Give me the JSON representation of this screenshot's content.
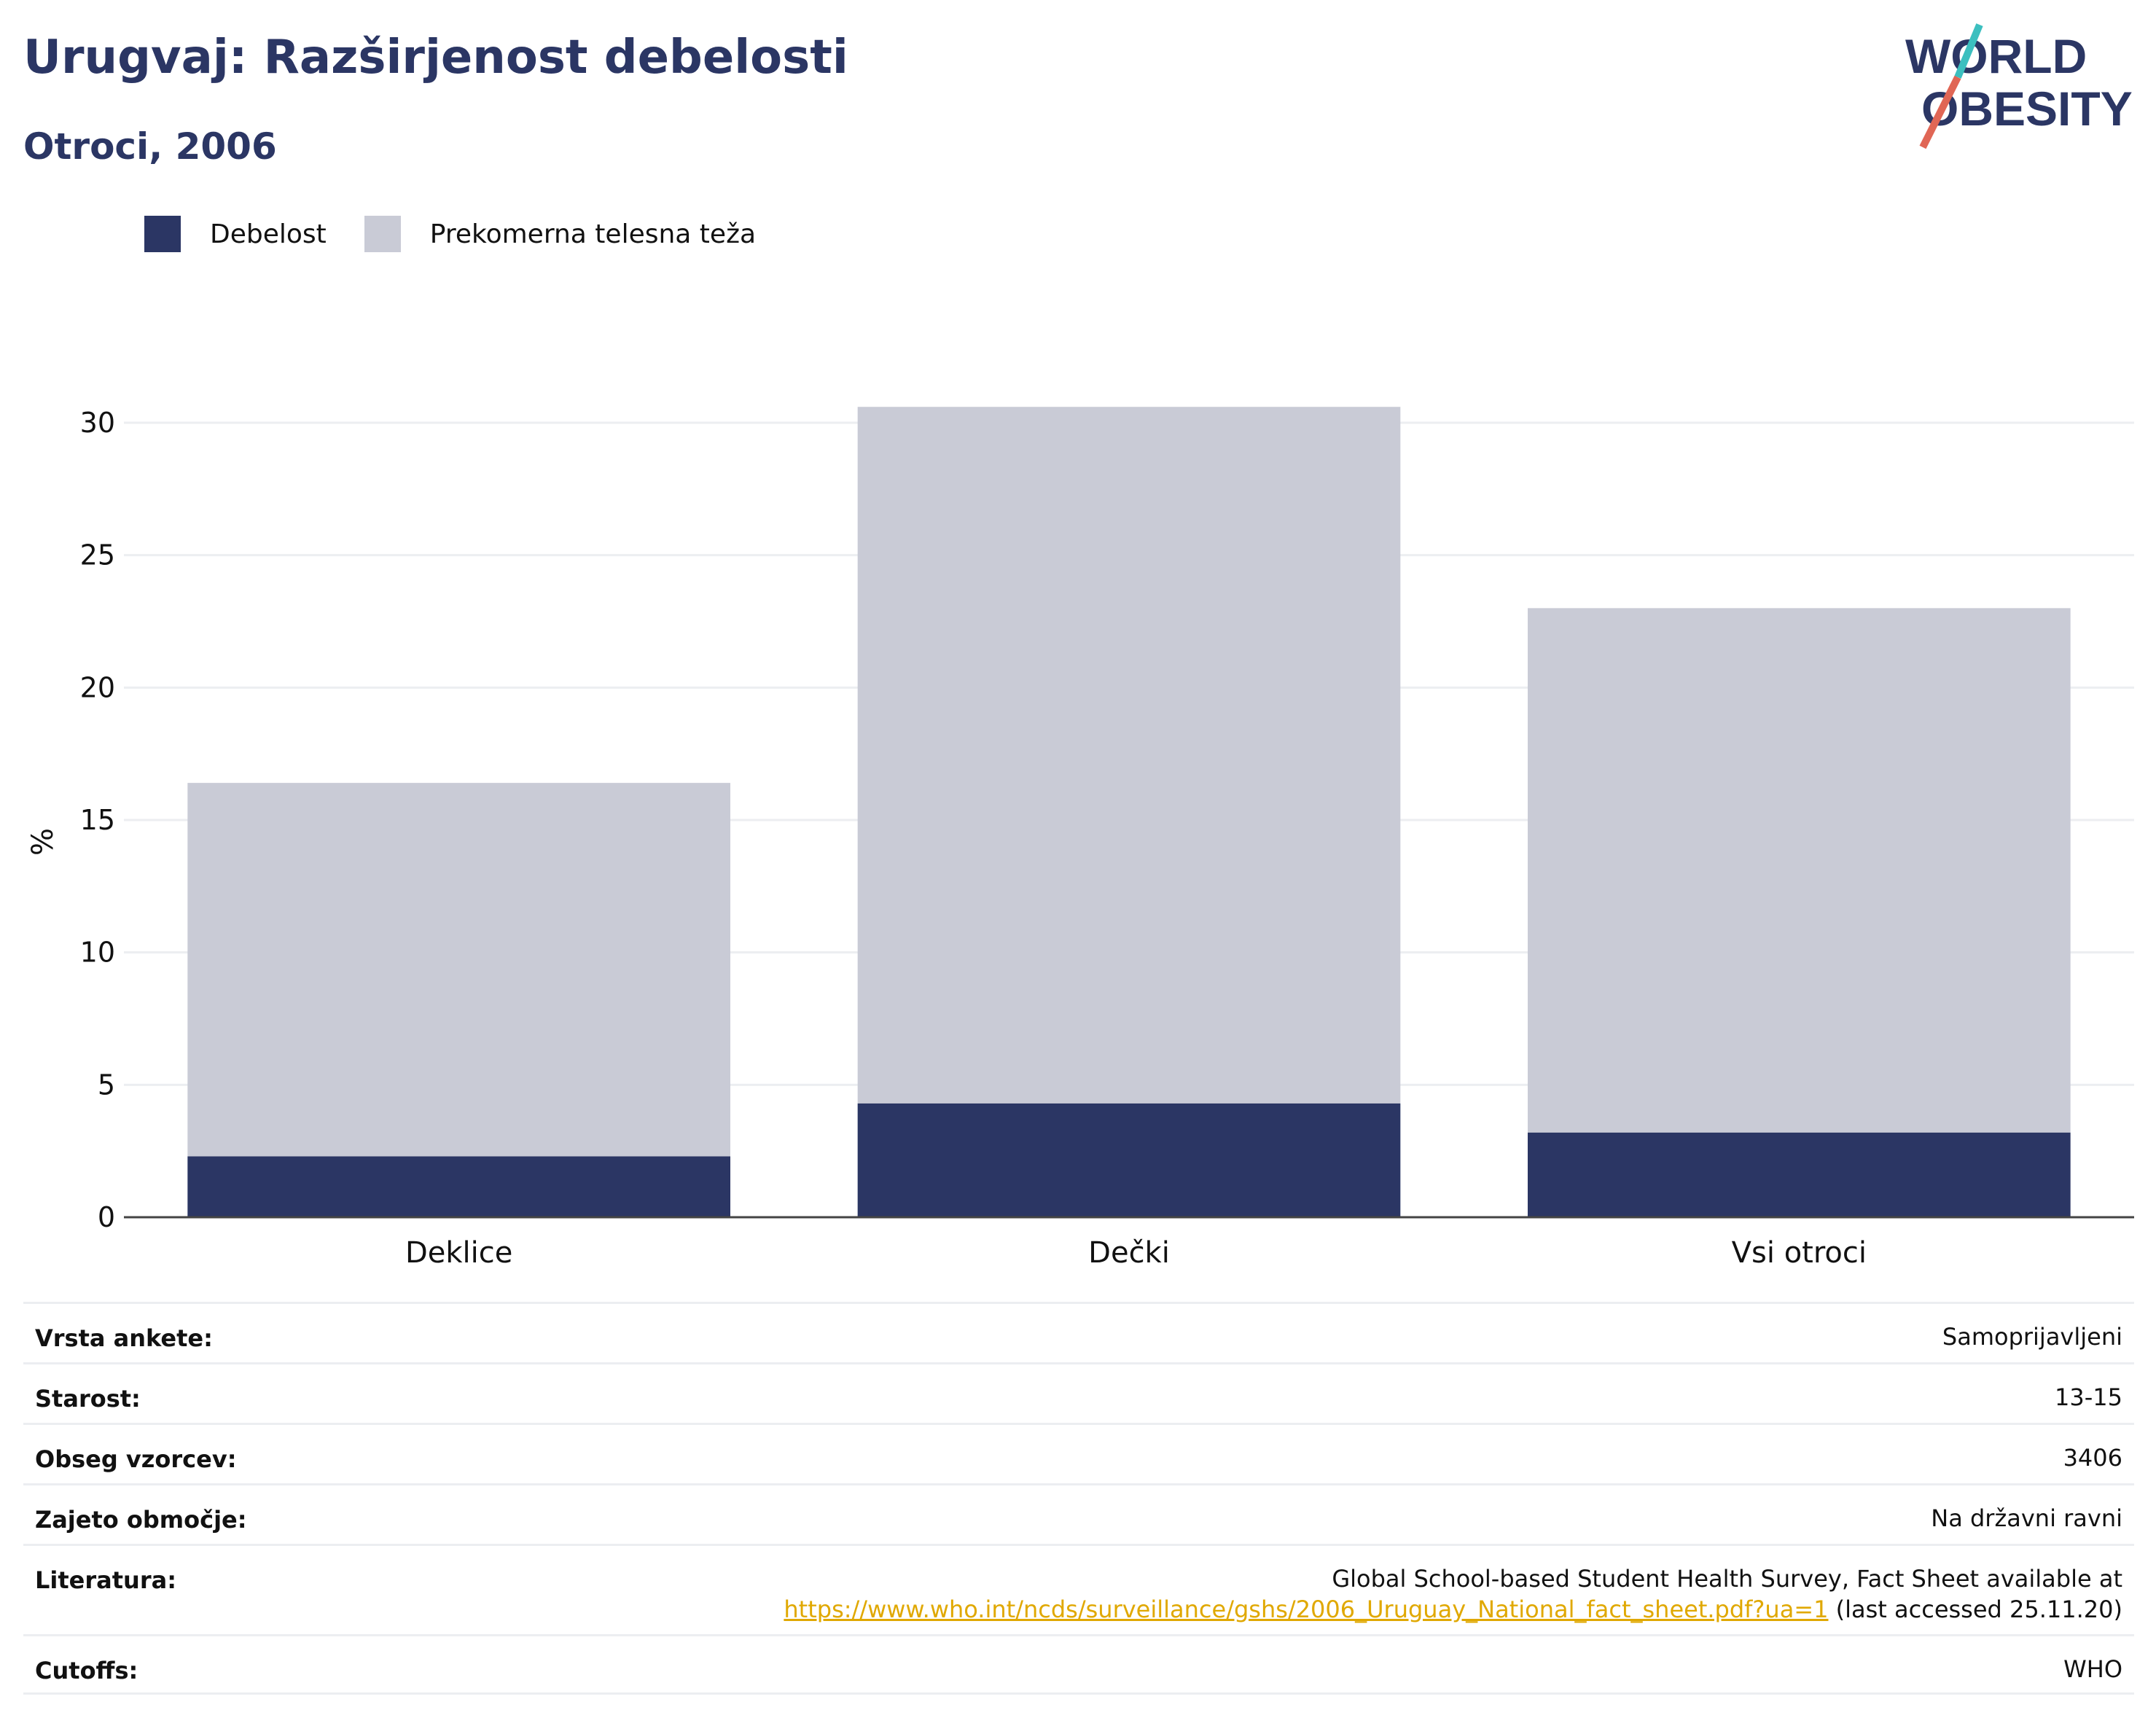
{
  "header": {
    "title": "Urugvaj: Razširjenost debelosti",
    "subtitle": "Otroci, 2006"
  },
  "logo": {
    "line1": "WORLD",
    "line2": "OBESITY",
    "colors": {
      "text": "#2b3664",
      "slash_top": "#3cbfbf",
      "slash_bottom": "#e06655"
    }
  },
  "legend": [
    {
      "label": "Debelost",
      "color": "#2b3664"
    },
    {
      "label": "Prekomerna telesna teža",
      "color": "#c9cbd6"
    }
  ],
  "chart_data": {
    "type": "bar",
    "stacked": true,
    "categories": [
      "Deklice",
      "Dečki",
      "Vsi otroci"
    ],
    "series": [
      {
        "name": "Debelost",
        "values": [
          2.3,
          4.3,
          3.2
        ],
        "color": "#2b3664"
      },
      {
        "name": "Prekomerna telesna teža",
        "values": [
          14.1,
          26.3,
          19.8
        ],
        "color": "#c9cbd6"
      }
    ],
    "totals": [
      16.4,
      30.6,
      23.0
    ],
    "ylabel": "%",
    "xlabel": "",
    "ylim": [
      0,
      30
    ],
    "yticks": [
      0,
      5,
      10,
      15,
      20,
      25,
      30
    ],
    "grid": true,
    "legend_position": "top-left"
  },
  "info": {
    "survey_type": {
      "label": "Vrsta ankete:",
      "value": "Samoprijavljeni"
    },
    "age": {
      "label": "Starost:",
      "value": "13-15"
    },
    "sample_size": {
      "label": "Obseg vzorcev:",
      "value": "3406"
    },
    "area": {
      "label": "Zajeto območje:",
      "value": "Na državni ravni"
    },
    "literature": {
      "label": "Literatura:",
      "text": "Global School-based Student Health Survey, Fact Sheet available at",
      "link": "https://www.who.int/ncds/surveillance/gshs/2006_Uruguay_National_fact_sheet.pdf?ua=1",
      "suffix": " (last accessed 25.11.20)"
    },
    "cutoffs": {
      "label": "Cutoffs:",
      "value": "WHO"
    }
  }
}
